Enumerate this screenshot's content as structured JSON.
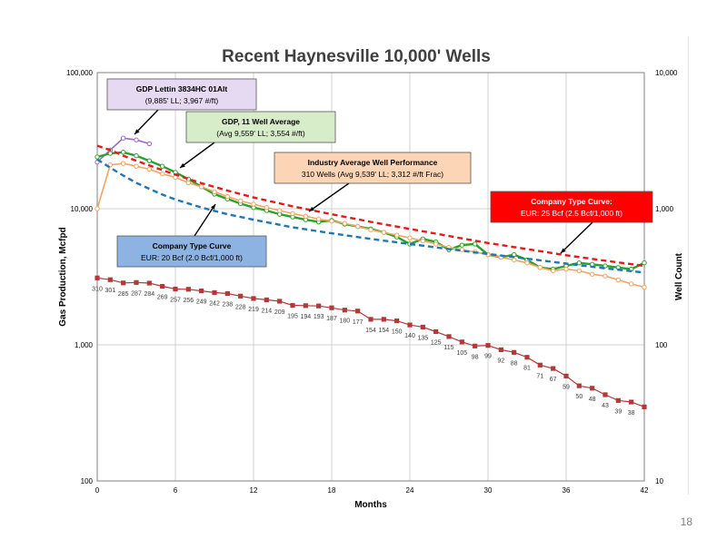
{
  "page_number": "18",
  "chart_data": {
    "type": "line",
    "title": "Recent Haynesville 10,000' Wells",
    "xlabel": "Months",
    "ylabel": "Gas Production, Mcfpd",
    "y2label": "Well Count",
    "xlim": [
      0,
      42
    ],
    "ylim": [
      100,
      100000
    ],
    "y2lim": [
      10,
      10000
    ],
    "yscale": "log",
    "x_ticks": [
      "0",
      "6",
      "12",
      "18",
      "24",
      "30",
      "36",
      "42"
    ],
    "y_ticks": [
      "100",
      "1,000",
      "10,000",
      "100,000"
    ],
    "y2_ticks": [
      "10",
      "100",
      "1,000",
      "10,000"
    ],
    "grid": true,
    "colors": {
      "gdp_lettin": "#9966cc",
      "gdp_avg": "#2ca02c",
      "industry": "#f4a460",
      "company_type_25": "#e41a1c",
      "company_type_20": "#1f77b4",
      "well_count": "#b03a3a"
    },
    "series": [
      {
        "key": "gdp_lettin",
        "style": "line-marker",
        "x": [
          0,
          1,
          2,
          3,
          4
        ],
        "y": [
          22000,
          27000,
          33000,
          32000,
          30000
        ]
      },
      {
        "key": "gdp_avg",
        "style": "line-marker",
        "x": [
          0,
          1,
          2,
          3,
          4,
          5,
          6,
          7,
          8,
          9,
          10,
          11,
          12,
          13,
          14,
          15,
          16,
          17,
          18,
          19,
          20,
          21,
          22,
          23,
          24,
          25,
          26,
          27,
          28,
          29,
          30,
          31,
          32,
          33,
          34,
          35,
          36,
          37,
          38,
          39,
          40,
          41,
          42
        ],
        "y": [
          24000,
          25500,
          26000,
          24500,
          22500,
          20500,
          18500,
          16500,
          14500,
          12800,
          11800,
          10900,
          10200,
          9700,
          9100,
          8700,
          8300,
          8000,
          8200,
          7700,
          7400,
          7100,
          6700,
          6200,
          5500,
          6000,
          5700,
          5000,
          5400,
          5500,
          4600,
          4400,
          4600,
          4200,
          3700,
          3600,
          3800,
          4000,
          3900,
          3800,
          3700,
          3600,
          4000
        ]
      },
      {
        "key": "industry",
        "style": "line-marker",
        "x": [
          0,
          1,
          2,
          3,
          4,
          5,
          6,
          7,
          8,
          9,
          10,
          11,
          12,
          13,
          14,
          15,
          16,
          17,
          18,
          19,
          20,
          21,
          22,
          23,
          24,
          25,
          26,
          27,
          28,
          29,
          30,
          31,
          32,
          33,
          34,
          35,
          36,
          37,
          38,
          39,
          40,
          41,
          42
        ],
        "y": [
          10000,
          21000,
          21500,
          20500,
          19500,
          18000,
          17000,
          15500,
          14500,
          13300,
          12300,
          11400,
          10800,
          10200,
          9700,
          9200,
          8800,
          8400,
          8100,
          7800,
          7400,
          7000,
          6700,
          6400,
          6100,
          5800,
          5500,
          5200,
          5000,
          4800,
          4600,
          4400,
          4200,
          4000,
          3700,
          3500,
          3600,
          3500,
          3300,
          3200,
          3000,
          2800,
          2650
        ]
      },
      {
        "key": "company_type_25",
        "style": "dashed",
        "x": [
          0,
          1,
          2,
          3,
          4,
          5,
          6,
          8,
          10,
          12,
          15,
          18,
          21,
          24,
          27,
          30,
          33,
          36,
          39,
          42
        ],
        "y": [
          29000,
          27000,
          24500,
          22500,
          20800,
          19200,
          17800,
          15400,
          13600,
          12100,
          10400,
          9100,
          8000,
          7100,
          6300,
          5600,
          5050,
          4550,
          4150,
          3800
        ]
      },
      {
        "key": "company_type_20",
        "style": "dashed",
        "x": [
          0,
          1,
          2,
          3,
          4,
          5,
          6,
          8,
          10,
          12,
          15,
          18,
          21,
          24,
          27,
          30,
          33,
          36,
          39,
          42
        ],
        "y": [
          23000,
          20000,
          17500,
          15500,
          14000,
          12700,
          11700,
          10200,
          9100,
          8300,
          7300,
          6600,
          6000,
          5500,
          5050,
          4650,
          4300,
          3950,
          3650,
          3400
        ]
      },
      {
        "key": "well_count",
        "style": "line-square",
        "axis": "y2",
        "x": [
          0,
          1,
          2,
          3,
          4,
          5,
          6,
          7,
          8,
          9,
          10,
          11,
          12,
          13,
          14,
          15,
          16,
          17,
          18,
          19,
          20,
          21,
          22,
          23,
          24,
          25,
          26,
          27,
          28,
          29,
          30,
          31,
          32,
          33,
          34,
          35,
          36,
          37,
          38,
          39,
          40,
          41,
          42
        ],
        "y": [
          310,
          301,
          285,
          287,
          284,
          269,
          257,
          256,
          249,
          242,
          238,
          228,
          219,
          214,
          209,
          195,
          194,
          193,
          187,
          180,
          177,
          154,
          154,
          150,
          140,
          135,
          125,
          115,
          105,
          98,
          99,
          92,
          88,
          81,
          71,
          67,
          59,
          50,
          48,
          43,
          39,
          38,
          35
        ],
        "labels": [
          "310",
          "301",
          "285",
          "287",
          "284",
          "269",
          "257",
          "256",
          "249",
          "242",
          "238",
          "228",
          "219",
          "214",
          "209",
          "195",
          "194",
          "193",
          "187",
          "180",
          "177",
          "154",
          "154",
          "150",
          "140",
          "135",
          "125",
          "115",
          "105",
          "98",
          "99",
          "92",
          "88",
          "81",
          "71",
          "67",
          "59",
          "50",
          "48",
          "43",
          "39",
          "38",
          ""
        ]
      }
    ],
    "annotations": [
      {
        "key": "gdp_lettin",
        "lines": [
          "GDP Lettin 3834HC 01Alt",
          "(9,885' LL; 3,967 #/ft)"
        ],
        "fill": "#e6d9f2",
        "text_color": "#000000"
      },
      {
        "key": "gdp_avg",
        "lines": [
          "GDP, 11 Well Average",
          "(Avg 9,559' LL; 3,554 #/ft)"
        ],
        "fill": "#d7ecc9",
        "text_color": "#000000"
      },
      {
        "key": "industry",
        "lines": [
          "Industry Average Well Performance",
          "310 Wells (Avg 9,539' LL; 3,312 #/ft Frac)"
        ],
        "fill": "#fbd5b5",
        "text_color": "#000000"
      },
      {
        "key": "company_type_25",
        "lines": [
          "Company Type Curve:",
          "EUR: 25 Bcf (2.5 Bcf/1,000 ft)"
        ],
        "fill": "#ff0000",
        "text_color": "#ffffff"
      },
      {
        "key": "company_type_20",
        "lines": [
          "Company Type Curve",
          "EUR: 20 Bcf (2.0 Bcf/1,000 ft)"
        ],
        "fill": "#8db3e2",
        "text_color": "#000000"
      }
    ]
  }
}
